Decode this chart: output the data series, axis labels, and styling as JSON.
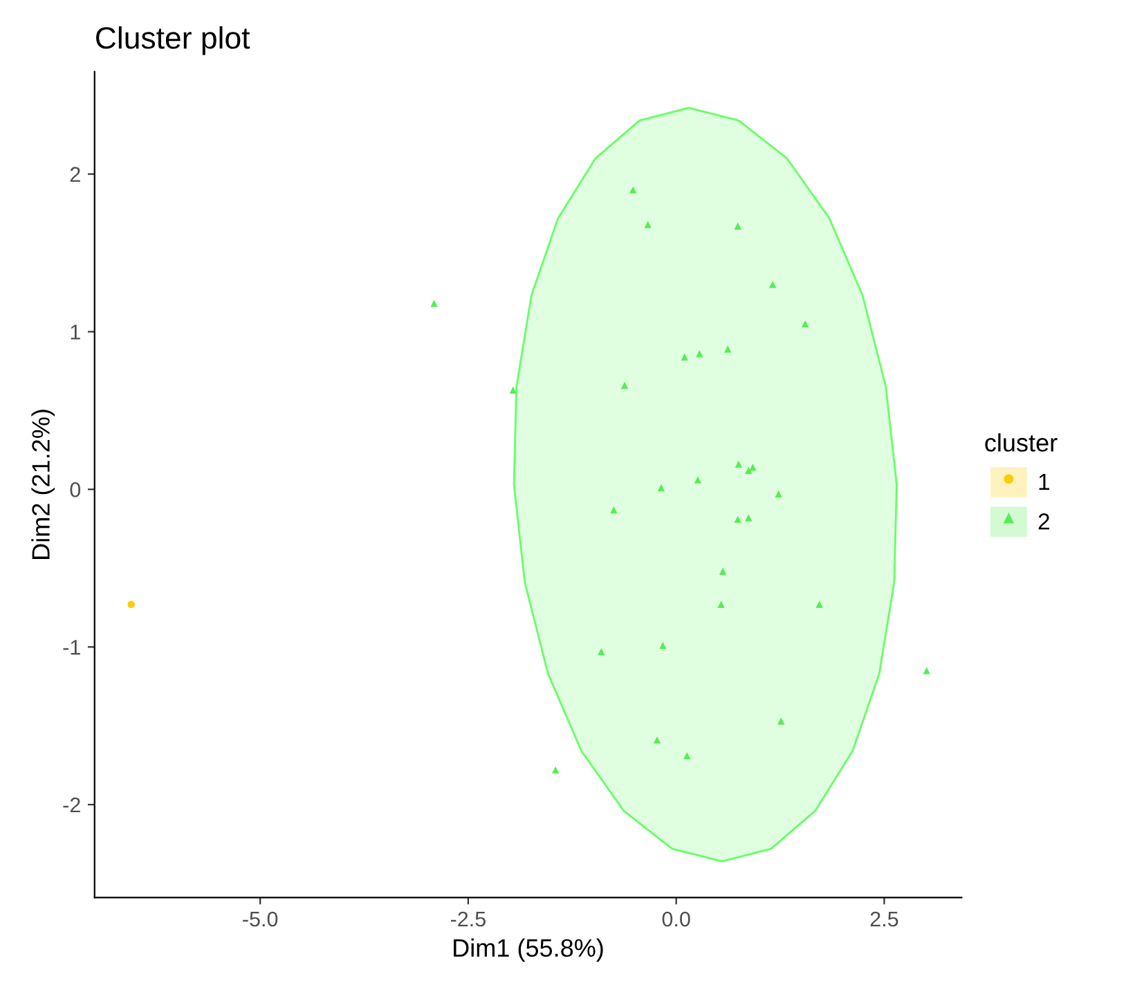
{
  "chart_data": {
    "type": "scatter",
    "title": "Cluster plot",
    "xlabel": "Dim1 (55.8%)",
    "ylabel": "Dim2 (21.2%)",
    "legend_title": "cluster",
    "legend": "right",
    "grid": false,
    "xlim": [
      -6.99,
      3.43
    ],
    "ylim": [
      -2.59,
      2.65
    ],
    "xticks": [
      {
        "value": -5,
        "label": "-5.0"
      },
      {
        "value": -2.5,
        "label": "-2.5"
      },
      {
        "value": 0,
        "label": "0.0"
      },
      {
        "value": 2.5,
        "label": "2.5"
      }
    ],
    "yticks": [
      -2,
      -1,
      0,
      1,
      2
    ],
    "series": [
      {
        "type": "area",
        "color": "#66ff66",
        "x": [
          2.65,
          2.52,
          2.24,
          1.84,
          1.33,
          0.75,
          0.15,
          -0.44,
          -0.97,
          -1.42,
          -1.74,
          -1.92,
          -1.95,
          -1.82,
          -1.54,
          -1.14,
          -0.63,
          -0.05,
          0.55,
          1.14,
          1.67,
          2.12,
          2.44,
          2.62
        ],
        "values": [
          0.03,
          0.65,
          1.23,
          1.72,
          2.1,
          2.34,
          2.42,
          2.34,
          2.1,
          1.72,
          1.23,
          0.65,
          0.03,
          -0.59,
          -1.17,
          -1.66,
          -2.04,
          -2.28,
          -2.36,
          -2.28,
          -2.04,
          -1.66,
          -1.17,
          -0.59
        ]
      },
      {
        "name": "1",
        "marker": "circle",
        "color": "#ffcc00",
        "x": [
          -6.55
        ],
        "values": [
          -0.73
        ]
      },
      {
        "name": "2",
        "marker": "triangle",
        "color": "#55ee55",
        "x": [
          -2.91,
          -1.96,
          -0.52,
          -0.34,
          0.74,
          1.16,
          1.55,
          0.1,
          0.28,
          0.62,
          -0.62,
          0.75,
          0.87,
          0.92,
          -0.18,
          0.26,
          1.23,
          -0.75,
          0.74,
          0.87,
          0.56,
          0.54,
          1.72,
          -0.9,
          -0.16,
          3.01,
          1.26,
          -0.23,
          0.13,
          -1.45
        ],
        "values": [
          1.18,
          0.63,
          1.9,
          1.68,
          1.67,
          1.3,
          1.05,
          0.84,
          0.86,
          0.89,
          0.66,
          0.16,
          0.12,
          0.14,
          0.01,
          0.06,
          -0.03,
          -0.13,
          -0.19,
          -0.18,
          -0.52,
          -0.73,
          -0.73,
          -1.03,
          -0.99,
          -1.15,
          -1.47,
          -1.59,
          -1.69,
          -1.78
        ]
      }
    ]
  }
}
